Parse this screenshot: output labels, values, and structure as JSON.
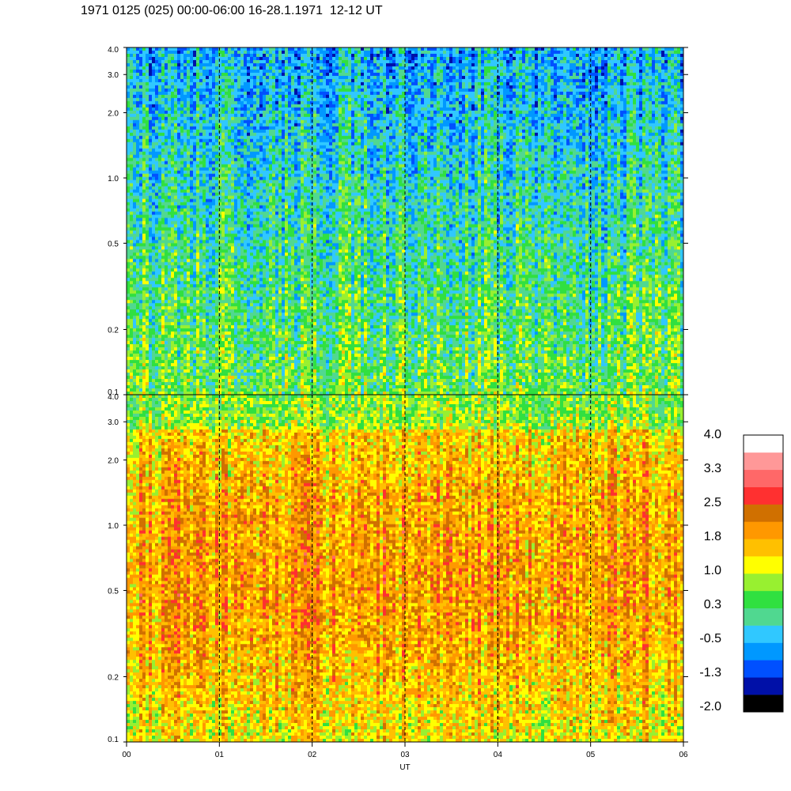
{
  "chart_data": {
    "type": "heatmap",
    "title": "1971 0125 (025) 00:00-06:00 16-28.1.1971  12-12 UT",
    "xlabel": "UT",
    "x_ticks": [
      "00",
      "01",
      "02",
      "03",
      "04",
      "05",
      "06"
    ],
    "xlim": [
      0,
      6
    ],
    "panels": [
      {
        "name": "upper",
        "y_scale": "log",
        "ylim": [
          0.1,
          4.0
        ],
        "y_ticks": [
          "0.1",
          "0.2",
          "0.5",
          "1.0",
          "2.0",
          "3.0",
          "4.0"
        ],
        "y_tick_values": [
          0.1,
          0.2,
          0.5,
          1.0,
          2.0,
          3.0,
          4.0
        ],
        "dominant_level_range": [
          -1.3,
          1.0
        ]
      },
      {
        "name": "lower",
        "y_scale": "log",
        "ylim": [
          0.1,
          4.0
        ],
        "y_ticks": [
          "0.1",
          "0.2",
          "0.5",
          "1.0",
          "2.0",
          "3.0",
          "4.0"
        ],
        "y_tick_values": [
          0.1,
          0.2,
          0.5,
          1.0,
          2.0,
          3.0,
          4.0
        ],
        "dominant_level_range": [
          0.3,
          2.5
        ]
      }
    ],
    "hour_markers": [
      1,
      2,
      3,
      4,
      5
    ],
    "colorbar": {
      "labels": [
        "4.0",
        "3.3",
        "2.5",
        "1.8",
        "1.0",
        "0.3",
        "-0.5",
        "-1.3",
        "-2.0"
      ],
      "range": [
        -2.0,
        4.0
      ],
      "colors": [
        "#000000",
        "#0010a8",
        "#0050ff",
        "#0098ff",
        "#30c8ff",
        "#50d890",
        "#30e040",
        "#98f030",
        "#ffff00",
        "#ffc000",
        "#ff9800",
        "#d07000",
        "#ff3030",
        "#ff6868",
        "#ff9898",
        "#ffffff"
      ]
    }
  }
}
